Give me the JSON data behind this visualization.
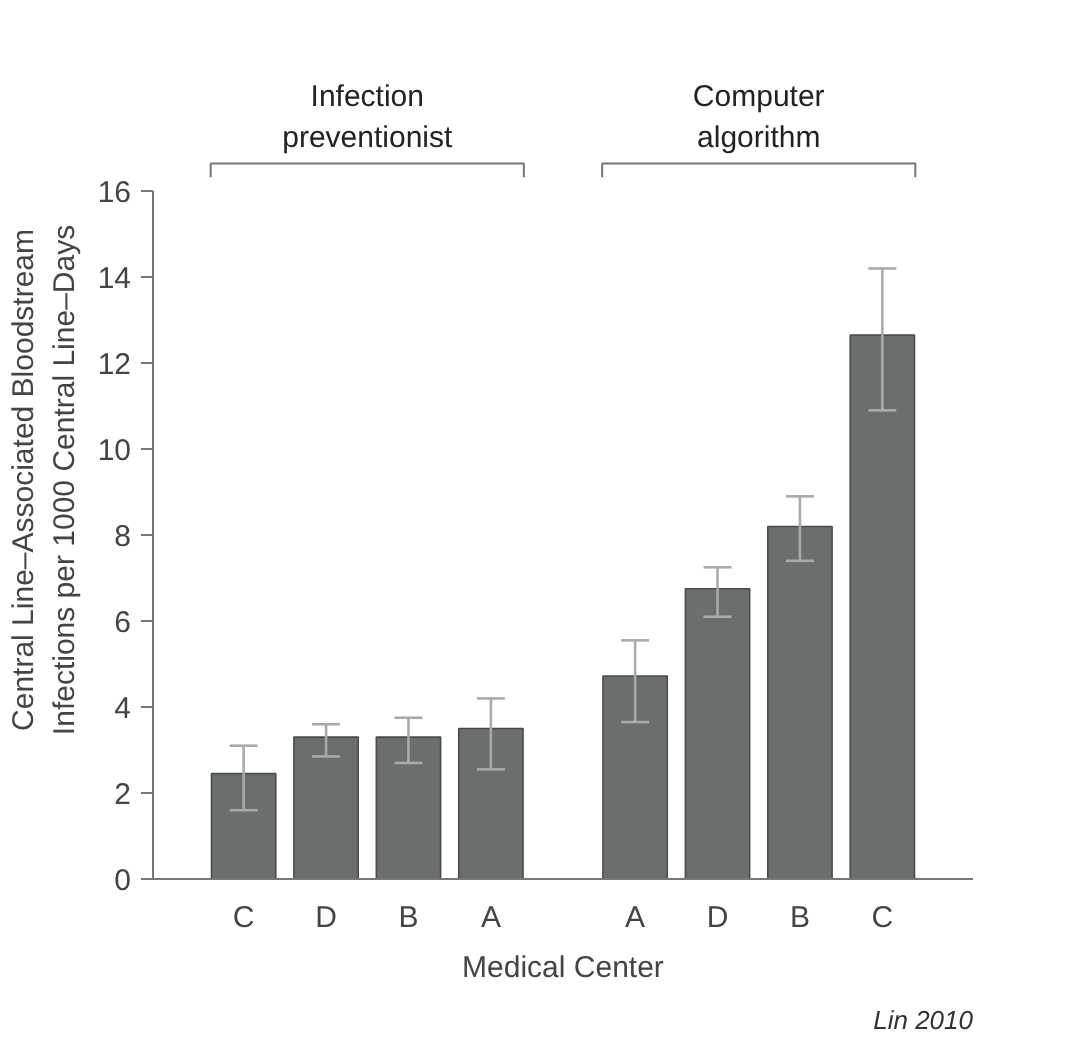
{
  "chart_data": {
    "type": "bar",
    "xlabel": "Medical Center",
    "ylabel": "Central Line–Associated Bloodstream Infections per 1000 Central Line–Days",
    "categories": [
      "C",
      "D",
      "B",
      "A",
      "A",
      "D",
      "B",
      "C"
    ],
    "values": [
      2.45,
      3.3,
      3.3,
      3.5,
      4.72,
      6.75,
      8.2,
      12.65
    ],
    "errors": [
      [
        1.6,
        3.1
      ],
      [
        2.85,
        3.6
      ],
      [
        2.7,
        3.75
      ],
      [
        2.55,
        4.2
      ],
      [
        3.65,
        5.55
      ],
      [
        6.1,
        7.25
      ],
      [
        7.4,
        8.9
      ],
      [
        10.9,
        14.2
      ]
    ],
    "color": "#6b6e6e",
    "ylim": [
      0,
      16
    ],
    "yticks": [
      0,
      2,
      4,
      6,
      8,
      10,
      12,
      14,
      16
    ],
    "grid": false,
    "annotations": [
      "Infection preventionist",
      "Computer algorithm",
      "Lin 2010"
    ]
  }
}
